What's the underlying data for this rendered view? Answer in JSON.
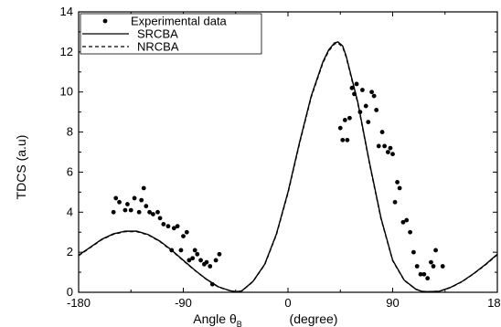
{
  "chart_data": {
    "type": "line",
    "title": "",
    "xlabel": "Angle θ",
    "xlabel_sub": "B",
    "xlabel_unit": "(degree)",
    "ylabel": "TDCS (a.u)",
    "xlim": [
      -180,
      180
    ],
    "ylim": [
      0,
      14
    ],
    "xticks": [
      -180,
      -90,
      0,
      90,
      180
    ],
    "yticks": [
      0,
      2,
      4,
      6,
      8,
      10,
      12,
      14
    ],
    "grid": false,
    "legend_position": "top-left",
    "series": [
      {
        "name": "Experimental data",
        "kind": "scatter",
        "color": "#000000",
        "points": [
          [
            -150,
            4.0
          ],
          [
            -148,
            4.7
          ],
          [
            -145,
            4.5
          ],
          [
            -140,
            4.1
          ],
          [
            -138,
            4.4
          ],
          [
            -135,
            4.1
          ],
          [
            -132,
            4.7
          ],
          [
            -128,
            4.0
          ],
          [
            -126,
            4.6
          ],
          [
            -124,
            5.2
          ],
          [
            -122,
            4.3
          ],
          [
            -119,
            4.0
          ],
          [
            -116,
            3.9
          ],
          [
            -112,
            4.0
          ],
          [
            -110,
            3.7
          ],
          [
            -107,
            3.4
          ],
          [
            -103,
            3.3
          ],
          [
            -100,
            2.1
          ],
          [
            -98,
            3.2
          ],
          [
            -95,
            3.3
          ],
          [
            -92,
            2.1
          ],
          [
            -90,
            2.8
          ],
          [
            -87,
            3.0
          ],
          [
            -85,
            1.6
          ],
          [
            -82,
            1.7
          ],
          [
            -80,
            2.1
          ],
          [
            -78,
            1.9
          ],
          [
            -75,
            1.6
          ],
          [
            -72,
            1.4
          ],
          [
            -70,
            1.5
          ],
          [
            -67,
            1.3
          ],
          [
            -65,
            0.4
          ],
          [
            -62,
            1.6
          ],
          [
            -59,
            1.9
          ],
          [
            45,
            8.2
          ],
          [
            47,
            7.6
          ],
          [
            49,
            8.6
          ],
          [
            51,
            7.6
          ],
          [
            53,
            8.7
          ],
          [
            55,
            10.2
          ],
          [
            57,
            9.9
          ],
          [
            59,
            10.4
          ],
          [
            62,
            9.0
          ],
          [
            64,
            10.1
          ],
          [
            67,
            9.3
          ],
          [
            69,
            8.5
          ],
          [
            72,
            10.0
          ],
          [
            74,
            9.8
          ],
          [
            76,
            9.1
          ],
          [
            78,
            7.3
          ],
          [
            81,
            8.0
          ],
          [
            83,
            7.3
          ],
          [
            86,
            7.0
          ],
          [
            88,
            7.2
          ],
          [
            90,
            6.9
          ],
          [
            92,
            4.5
          ],
          [
            94,
            5.5
          ],
          [
            96,
            5.2
          ],
          [
            99,
            3.5
          ],
          [
            102,
            3.6
          ],
          [
            105,
            3.0
          ],
          [
            108,
            2.0
          ],
          [
            111,
            1.3
          ],
          [
            114,
            0.9
          ],
          [
            117,
            0.9
          ],
          [
            120,
            0.7
          ],
          [
            123,
            1.5
          ],
          [
            125,
            1.3
          ],
          [
            127,
            2.1
          ],
          [
            133,
            1.3
          ]
        ]
      },
      {
        "name": "SRCBA",
        "kind": "line",
        "style": "solid",
        "color": "#000000",
        "points": [
          [
            -180,
            1.85
          ],
          [
            -170,
            2.25
          ],
          [
            -160,
            2.65
          ],
          [
            -150,
            2.92
          ],
          [
            -140,
            3.05
          ],
          [
            -130,
            3.05
          ],
          [
            -120,
            2.88
          ],
          [
            -110,
            2.55
          ],
          [
            -100,
            2.1
          ],
          [
            -90,
            1.6
          ],
          [
            -80,
            1.1
          ],
          [
            -70,
            0.65
          ],
          [
            -60,
            0.28
          ],
          [
            -50,
            0.08
          ],
          [
            -45,
            0.03
          ],
          [
            -40,
            0.06
          ],
          [
            -35,
            0.3
          ],
          [
            -30,
            0.55
          ],
          [
            -20,
            1.4
          ],
          [
            -10,
            2.9
          ],
          [
            0,
            5.0
          ],
          [
            10,
            7.5
          ],
          [
            20,
            9.8
          ],
          [
            30,
            11.5
          ],
          [
            35,
            12.1
          ],
          [
            40,
            12.45
          ],
          [
            43,
            12.5
          ],
          [
            47,
            12.3
          ],
          [
            50,
            11.8
          ],
          [
            60,
            9.5
          ],
          [
            70,
            6.5
          ],
          [
            80,
            3.7
          ],
          [
            90,
            1.6
          ],
          [
            100,
            0.6
          ],
          [
            110,
            0.15
          ],
          [
            115,
            0.05
          ],
          [
            120,
            0.03
          ],
          [
            130,
            0.05
          ],
          [
            140,
            0.25
          ],
          [
            150,
            0.55
          ],
          [
            160,
            0.95
          ],
          [
            170,
            1.4
          ],
          [
            180,
            1.9
          ]
        ]
      },
      {
        "name": "NRCBA",
        "kind": "line",
        "style": "dashed",
        "color": "#000000",
        "points": [
          [
            -180,
            1.83
          ],
          [
            -170,
            2.23
          ],
          [
            -160,
            2.63
          ],
          [
            -150,
            2.9
          ],
          [
            -140,
            3.03
          ],
          [
            -130,
            3.03
          ],
          [
            -120,
            2.86
          ],
          [
            -110,
            2.53
          ],
          [
            -100,
            2.08
          ],
          [
            -90,
            1.58
          ],
          [
            -80,
            1.09
          ],
          [
            -70,
            0.64
          ],
          [
            -60,
            0.27
          ],
          [
            -50,
            0.08
          ],
          [
            -45,
            0.03
          ],
          [
            -40,
            0.06
          ],
          [
            -35,
            0.29
          ],
          [
            -30,
            0.54
          ],
          [
            -20,
            1.38
          ],
          [
            -10,
            2.87
          ],
          [
            0,
            4.96
          ],
          [
            10,
            7.45
          ],
          [
            20,
            9.75
          ],
          [
            30,
            11.45
          ],
          [
            35,
            12.05
          ],
          [
            40,
            12.4
          ],
          [
            43,
            12.45
          ],
          [
            47,
            12.25
          ],
          [
            50,
            11.75
          ],
          [
            60,
            9.45
          ],
          [
            70,
            6.45
          ],
          [
            80,
            3.67
          ],
          [
            90,
            1.58
          ],
          [
            100,
            0.59
          ],
          [
            110,
            0.15
          ],
          [
            115,
            0.05
          ],
          [
            120,
            0.03
          ],
          [
            130,
            0.05
          ],
          [
            140,
            0.24
          ],
          [
            150,
            0.54
          ],
          [
            160,
            0.94
          ],
          [
            170,
            1.38
          ],
          [
            180,
            1.88
          ]
        ]
      }
    ]
  }
}
